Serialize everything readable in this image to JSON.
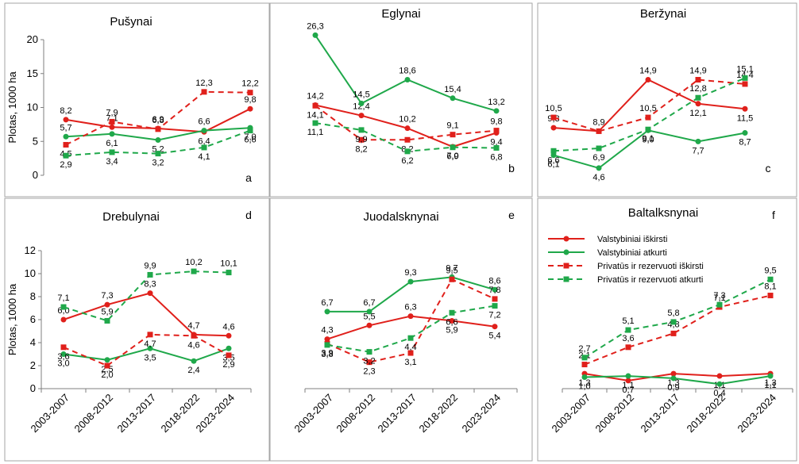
{
  "chart_data": {
    "type": "line",
    "ylabel": "Plotas, 1000 ha",
    "categories": [
      "2003-2007",
      "2008-2012",
      "2013-2017",
      "2018-2022",
      "2023-2024"
    ],
    "series_names": [
      "Valstybiniai iškirsti",
      "Valstybiniai atkurti",
      "Privatūs ir rezervuoti iškirsti",
      "Privatūs ir rezervuoti atkurti"
    ],
    "colors": {
      "red": "#e0201b",
      "green": "#1fa84a"
    },
    "panels": [
      {
        "title": "Pušynai",
        "letter": "a",
        "ylim": [
          0,
          20
        ],
        "yticks": [
          "0",
          "5",
          "10",
          "15",
          "20"
        ],
        "series": [
          {
            "name": "Valstybiniai iškirsti",
            "values": [
              8.2,
              7.1,
              6.9,
              6.4,
              9.8
            ],
            "labels": [
              "8,2",
              "7,1",
              "6,9",
              "6,4",
              "9,8"
            ]
          },
          {
            "name": "Valstybiniai atkurti",
            "values": [
              5.7,
              6.1,
              5.2,
              6.6,
              7.0
            ],
            "labels": [
              "5,7",
              "6,1",
              "5,2",
              "6,6",
              "7,0"
            ]
          },
          {
            "name": "Privatūs ir rezervuoti iškirsti",
            "values": [
              4.5,
              7.9,
              6.8,
              12.3,
              12.2
            ],
            "labels": [
              "4,5",
              "7,9",
              "6,8",
              "12,3",
              "12,2"
            ]
          },
          {
            "name": "Privatūs ir rezervuoti atkurti",
            "values": [
              2.9,
              3.4,
              3.2,
              4.1,
              6.6
            ],
            "labels": [
              "2,9",
              "3,4",
              "3,2",
              "4,1",
              "6,6"
            ]
          }
        ]
      },
      {
        "title": "Eglynai",
        "letter": "b",
        "ylim": [
          0,
          28
        ],
        "yticks": [],
        "series": [
          {
            "name": "Valstybiniai iškirsti",
            "values": [
              14.2,
              12.4,
              10.2,
              7.0,
              9.4
            ],
            "labels": [
              "14,2",
              "12,4",
              "10,2",
              "7,0",
              "9,4"
            ]
          },
          {
            "name": "Valstybiniai atkurti",
            "values": [
              26.3,
              14.5,
              18.6,
              15.4,
              13.2
            ],
            "labels": [
              "26,3",
              "14,5",
              "18,6",
              "15,4",
              "13,2"
            ]
          },
          {
            "name": "Privatūs ir rezervuoti iškirsti",
            "values": [
              14.1,
              8.2,
              8.2,
              9.1,
              9.8
            ],
            "labels": [
              "14,1",
              "8,2",
              "8,2",
              "9,1",
              "9,8"
            ]
          },
          {
            "name": "Privatūs ir rezervuoti atkurti",
            "values": [
              11.1,
              9.9,
              6.2,
              6.9,
              6.8
            ],
            "labels": [
              "11,1",
              "9,9",
              "6,2",
              "6,9",
              "6,8"
            ]
          }
        ]
      },
      {
        "title": "Beržynai",
        "letter": "c",
        "ylim": [
          2,
          18
        ],
        "yticks": [],
        "series": [
          {
            "name": "Valstybiniai iškirsti",
            "values": [
              9.3,
              8.9,
              14.9,
              12.1,
              11.5
            ],
            "labels": [
              "9,3",
              "8,9",
              "14,9",
              "12,1",
              "11,5"
            ]
          },
          {
            "name": "Valstybiniai atkurti",
            "values": [
              6.1,
              4.6,
              9.0,
              7.7,
              8.7
            ],
            "labels": [
              "6,1",
              "4,6",
              "9,0",
              "7,7",
              "8,7"
            ]
          },
          {
            "name": "Privatūs ir rezervuoti iškirsti",
            "values": [
              10.5,
              8.9,
              10.5,
              14.9,
              14.4
            ],
            "labels": [
              "10,5",
              "",
              "10,5",
              "14,9",
              "14,4"
            ]
          },
          {
            "name": "Privatūs ir rezervuoti atkurti",
            "values": [
              6.6,
              6.9,
              9.1,
              12.8,
              15.1
            ],
            "labels": [
              "6,6",
              "6,9",
              "9,1",
              "12,8",
              "15,1"
            ]
          }
        ]
      },
      {
        "title": "Drebulynai",
        "letter": "d",
        "ylim": [
          0,
          12
        ],
        "yticks": [
          "0",
          "2",
          "4",
          "6",
          "8",
          "10",
          "12"
        ],
        "series": [
          {
            "name": "Valstybiniai iškirsti",
            "values": [
              6.0,
              7.3,
              8.3,
              4.7,
              4.6
            ],
            "labels": [
              "6,0",
              "7,3",
              "8,3",
              "4,7",
              "4,6"
            ]
          },
          {
            "name": "Valstybiniai atkurti",
            "values": [
              3.0,
              2.5,
              3.5,
              2.4,
              3.5
            ],
            "labels": [
              "3,0",
              "2,5",
              "3,5",
              "2,4",
              "3,5"
            ]
          },
          {
            "name": "Privatūs ir rezervuoti iškirsti",
            "values": [
              3.6,
              2.0,
              4.7,
              4.6,
              2.9
            ],
            "labels": [
              "3,6",
              "2,0",
              "4,7",
              "4,6",
              "2,9"
            ]
          },
          {
            "name": "Privatūs ir rezervuoti atkurti",
            "values": [
              7.1,
              5.9,
              9.9,
              10.2,
              10.1
            ],
            "labels": [
              "7,1",
              "5,9",
              "9,9",
              "10,2",
              "10,1"
            ]
          }
        ]
      },
      {
        "title": "Juodalsknynai",
        "letter": "e",
        "ylim": [
          0,
          12
        ],
        "yticks": [],
        "series": [
          {
            "name": "Valstybiniai iškirsti",
            "values": [
              4.3,
              5.5,
              6.3,
              5.9,
              5.4
            ],
            "labels": [
              "4,3",
              "5,5",
              "6,3",
              "5,9",
              "5,4"
            ]
          },
          {
            "name": "Valstybiniai atkurti",
            "values": [
              6.7,
              6.7,
              9.3,
              9.7,
              8.6
            ],
            "labels": [
              "6,7",
              "6,7",
              "9,3",
              "9,7",
              "8,6"
            ]
          },
          {
            "name": "Privatūs ir rezervuoti iškirsti",
            "values": [
              3.9,
              2.3,
              3.1,
              9.5,
              7.8
            ],
            "labels": [
              "3,9",
              "2,3",
              "3,1",
              "9,5",
              "7,8"
            ]
          },
          {
            "name": "Privatūs ir rezervuoti atkurti",
            "values": [
              3.8,
              3.2,
              4.4,
              6.6,
              7.2
            ],
            "labels": [
              "3,8",
              "3,2",
              "4,4",
              "6,6",
              "7,2"
            ]
          }
        ]
      },
      {
        "title": "Baltalksnynai",
        "letter": "f",
        "ylim": [
          0,
          12
        ],
        "yticks": [],
        "series": [
          {
            "name": "Valstybiniai iškirsti",
            "values": [
              1.3,
              0.7,
              1.3,
              1.1,
              1.3
            ],
            "labels": [
              "1,3",
              "0,7",
              "1,3",
              "1,1",
              "1,3"
            ]
          },
          {
            "name": "Valstybiniai atkurti",
            "values": [
              1.0,
              1.1,
              0.9,
              0.4,
              1.1
            ],
            "labels": [
              "1,0",
              "1,1",
              "0,9",
              "0,4",
              "1,1"
            ]
          },
          {
            "name": "Privatūs ir rezervuoti iškirsti",
            "values": [
              2.1,
              3.6,
              4.8,
              7.1,
              8.1
            ],
            "labels": [
              "2,1",
              "3,6",
              "4,8",
              "7,1",
              "8,1"
            ]
          },
          {
            "name": "Privatūs ir rezervuoti atkurti",
            "values": [
              2.7,
              5.1,
              5.8,
              7.3,
              9.5
            ],
            "labels": [
              "2,7",
              "5,1",
              "5,8",
              "7,3",
              "9,5"
            ]
          }
        ]
      }
    ]
  }
}
